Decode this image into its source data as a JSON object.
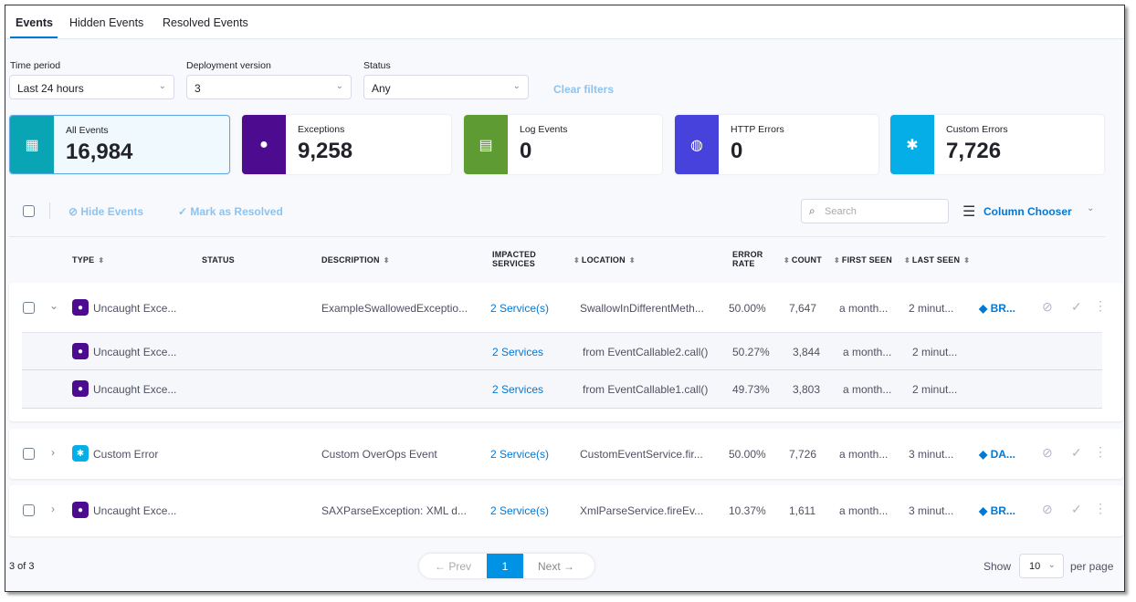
{
  "tabs": [
    "Events",
    "Hidden Events",
    "Resolved Events"
  ],
  "filters": {
    "time_label": "Time period",
    "time_value": "Last 24 hours",
    "deploy_label": "Deployment version",
    "deploy_value": "3",
    "status_label": "Status",
    "status_value": "Any",
    "clear": "Clear filters"
  },
  "cards": [
    {
      "label": "All Events",
      "value": "16,984",
      "color": "#0aa5b5",
      "icon": "grid-icon"
    },
    {
      "label": "Exceptions",
      "value": "9,258",
      "color": "#4d0b8f",
      "icon": "flame-icon"
    },
    {
      "label": "Log Events",
      "value": "0",
      "color": "#5f9b33",
      "icon": "document-icon"
    },
    {
      "label": "HTTP Errors",
      "value": "0",
      "color": "#4742db",
      "icon": "globe-icon"
    },
    {
      "label": "Custom Errors",
      "value": "7,726",
      "color": "#05aee6",
      "icon": "custom-error-icon"
    }
  ],
  "toolbar": {
    "hide": "Hide Events",
    "resolve": "Mark as Resolved",
    "search_placeholder": "Search",
    "column_chooser": "Column Chooser"
  },
  "headers": {
    "type": "TYPE",
    "status": "STATUS",
    "description": "DESCRIPTION",
    "impacted1": "IMPACTED",
    "impacted2": "SERVICES",
    "location": "LOCATION",
    "error1": "ERROR",
    "error2": "RATE",
    "count": "COUNT",
    "first": "FIRST SEEN",
    "last": "LAST SEEN"
  },
  "rows": [
    {
      "type": "Uncaught Exce...",
      "desc": "ExampleSwallowedExceptio...",
      "services": "2 Service(s)",
      "location": "SwallowInDifferentMeth...",
      "rate": "50.00%",
      "count": "7,647",
      "first": "a month...",
      "last": "2 minut...",
      "jira": "BR..."
    },
    {
      "type": "Custom Error",
      "desc": "Custom OverOps Event",
      "services": "2 Service(s)",
      "location": "CustomEventService.fir...",
      "rate": "50.00%",
      "count": "7,726",
      "first": "a month...",
      "last": "3 minut...",
      "jira": "DA..."
    },
    {
      "type": "Uncaught Exce...",
      "desc": "SAXParseException: XML d...",
      "services": "2 Service(s)",
      "location": "XmlParseService.fireEv...",
      "rate": "10.37%",
      "count": "1,611",
      "first": "a month...",
      "last": "3 minut...",
      "jira": "BR..."
    }
  ],
  "subrows": [
    {
      "type": "Uncaught Exce...",
      "services": "2 Services",
      "location": "from EventCallable2.call()",
      "rate": "50.27%",
      "count": "3,844",
      "first": "a month...",
      "last": "2 minut..."
    },
    {
      "type": "Uncaught Exce...",
      "services": "2 Services",
      "location": "from EventCallable1.call()",
      "rate": "49.73%",
      "count": "3,803",
      "first": "a month...",
      "last": "2 minut..."
    }
  ],
  "footer": {
    "count": "3 of 3",
    "prev": "← Prev",
    "page": "1",
    "next": "Next →",
    "show": "Show",
    "page_size": "10",
    "per_page": "per page"
  }
}
